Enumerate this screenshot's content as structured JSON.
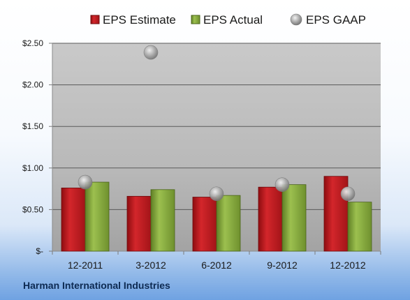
{
  "company": "Harman International Industries",
  "chart_data": {
    "type": "bar",
    "categories": [
      "12-2011",
      "3-2012",
      "6-2012",
      "9-2012",
      "12-2012"
    ],
    "series": [
      {
        "name": "EPS Estimate",
        "kind": "bar",
        "color": "#c0171d",
        "values": [
          0.76,
          0.66,
          0.65,
          0.77,
          0.9
        ]
      },
      {
        "name": "EPS Actual",
        "kind": "bar",
        "color": "#86ab3e",
        "values": [
          0.83,
          0.74,
          0.67,
          0.8,
          0.59
        ]
      },
      {
        "name": "EPS GAAP",
        "kind": "marker",
        "color": "#9a9a9a",
        "values": [
          0.83,
          2.39,
          0.69,
          0.8,
          0.69
        ]
      }
    ],
    "yticks": [
      {
        "value": 0,
        "label": "$-"
      },
      {
        "value": 0.5,
        "label": "$0.50"
      },
      {
        "value": 1.0,
        "label": "$1.00"
      },
      {
        "value": 1.5,
        "label": "$1.50"
      },
      {
        "value": 2.0,
        "label": "$2.00"
      },
      {
        "value": 2.5,
        "label": "$2.50"
      }
    ],
    "ylim": [
      0,
      2.5
    ],
    "grid": true,
    "legend": "top"
  }
}
